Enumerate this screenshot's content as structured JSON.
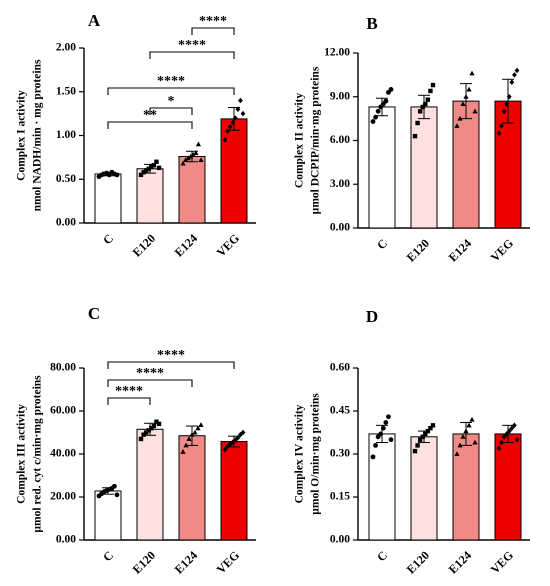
{
  "chart_data": [
    {
      "panel": "A",
      "type": "bar",
      "ylabel": [
        "Complex I activity",
        "nmol NADH/min · mg proteins"
      ],
      "ylim": [
        0,
        2.0
      ],
      "ticks": [
        "0.00",
        "0.50",
        "1.00",
        "1.50",
        "2.00"
      ],
      "categories": [
        "C",
        "E120",
        "E124",
        "VEG"
      ],
      "values": [
        0.56,
        0.62,
        0.76,
        1.19
      ],
      "errors": [
        0.02,
        0.05,
        0.06,
        0.13
      ],
      "colors": [
        "#ffffff",
        "#fde1de",
        "#f08a86",
        "#ee0000"
      ],
      "markers": [
        "circle",
        "square",
        "triangle",
        "diamond"
      ],
      "points": [
        [
          0.53,
          0.55,
          0.56,
          0.57,
          0.55,
          0.58,
          0.56,
          0.55
        ],
        [
          0.55,
          0.58,
          0.6,
          0.62,
          0.64,
          0.66,
          0.7,
          0.63
        ],
        [
          0.68,
          0.72,
          0.74,
          0.76,
          0.78,
          0.8,
          0.9,
          0.72
        ],
        [
          0.95,
          1.05,
          1.1,
          1.15,
          1.2,
          1.3,
          1.4,
          1.25
        ]
      ],
      "significance": [
        {
          "from": 0,
          "to": 2,
          "label": "**"
        },
        {
          "from": 1,
          "to": 2,
          "label": "*"
        },
        {
          "from": 0,
          "to": 3,
          "label": "****"
        },
        {
          "from": 1,
          "to": 3,
          "label": "****"
        },
        {
          "from": 2,
          "to": 3,
          "label": "****"
        }
      ]
    },
    {
      "panel": "B",
      "type": "bar",
      "ylabel": [
        "Complex II activity",
        "µmol DCPIP/min·mg proteins"
      ],
      "ylim": [
        0,
        12.0
      ],
      "ticks": [
        "0.00",
        "3.00",
        "6.00",
        "9.00",
        "12.00"
      ],
      "categories": [
        "C",
        "E120",
        "E124",
        "VEG"
      ],
      "values": [
        8.3,
        8.3,
        8.7,
        8.7
      ],
      "errors": [
        0.6,
        0.8,
        1.2,
        1.5
      ],
      "colors": [
        "#ffffff",
        "#fde1de",
        "#f08a86",
        "#ee0000"
      ],
      "markers": [
        "circle",
        "square",
        "triangle",
        "diamond"
      ],
      "points": [
        [
          7.3,
          7.6,
          8.0,
          8.3,
          8.5,
          8.7,
          9.3,
          9.5
        ],
        [
          6.3,
          7.2,
          8.0,
          8.3,
          8.5,
          8.8,
          9.4,
          9.8
        ],
        [
          7.0,
          7.5,
          8.5,
          9.0,
          9.5,
          10.6,
          8.0
        ],
        [
          6.5,
          7.0,
          8.0,
          8.5,
          9.0,
          10.0,
          10.5,
          10.8
        ]
      ],
      "significance": []
    },
    {
      "panel": "C",
      "type": "bar",
      "ylabel": [
        "Complex III activity",
        "µmol red. cyt c/min·mg proteins"
      ],
      "ylim": [
        0,
        80.0
      ],
      "ticks": [
        "0.00",
        "20.00",
        "40.00",
        "60.00",
        "80.00"
      ],
      "categories": [
        "C",
        "E120",
        "E124",
        "VEG"
      ],
      "values": [
        22.8,
        51.5,
        48.5,
        45.8
      ],
      "errors": [
        1.5,
        2.8,
        4.5,
        2.5
      ],
      "colors": [
        "#ffffff",
        "#fde1de",
        "#f08a86",
        "#ee0000"
      ],
      "markers": [
        "circle",
        "square",
        "triangle",
        "diamond"
      ],
      "points": [
        [
          20.5,
          21.5,
          22.5,
          23.0,
          23.5,
          24.0,
          25.0,
          21.0
        ],
        [
          47.0,
          49.0,
          50.0,
          51.0,
          52.0,
          53.0,
          55.0,
          54.0
        ],
        [
          41.0,
          44.0,
          47.0,
          49.0,
          50.0,
          52.0,
          53.5
        ],
        [
          42.0,
          43.5,
          44.5,
          45.5,
          46.5,
          47.5,
          49.0,
          50.0
        ]
      ],
      "significance": [
        {
          "from": 0,
          "to": 1,
          "label": "****"
        },
        {
          "from": 0,
          "to": 2,
          "label": "****"
        },
        {
          "from": 0,
          "to": 3,
          "label": "****"
        }
      ]
    },
    {
      "panel": "D",
      "type": "bar",
      "ylabel": [
        "Complex IV activity",
        "µmol O/min·mg proteins"
      ],
      "ylim": [
        0,
        0.6
      ],
      "ticks": [
        "0.00",
        "0.15",
        "0.30",
        "0.45",
        "0.60"
      ],
      "categories": [
        "C",
        "E120",
        "E124",
        "VEG"
      ],
      "values": [
        0.37,
        0.36,
        0.37,
        0.37
      ],
      "errors": [
        0.03,
        0.02,
        0.04,
        0.03
      ],
      "colors": [
        "#ffffff",
        "#fde1de",
        "#f08a86",
        "#ee0000"
      ],
      "markers": [
        "circle",
        "square",
        "triangle",
        "diamond"
      ],
      "points": [
        [
          0.29,
          0.33,
          0.36,
          0.37,
          0.39,
          0.41,
          0.43,
          0.35
        ],
        [
          0.31,
          0.33,
          0.35,
          0.36,
          0.37,
          0.38,
          0.39,
          0.4
        ],
        [
          0.3,
          0.33,
          0.36,
          0.38,
          0.4,
          0.42,
          0.34
        ],
        [
          0.32,
          0.34,
          0.36,
          0.37,
          0.38,
          0.39,
          0.4,
          0.35
        ]
      ],
      "significance": []
    }
  ]
}
